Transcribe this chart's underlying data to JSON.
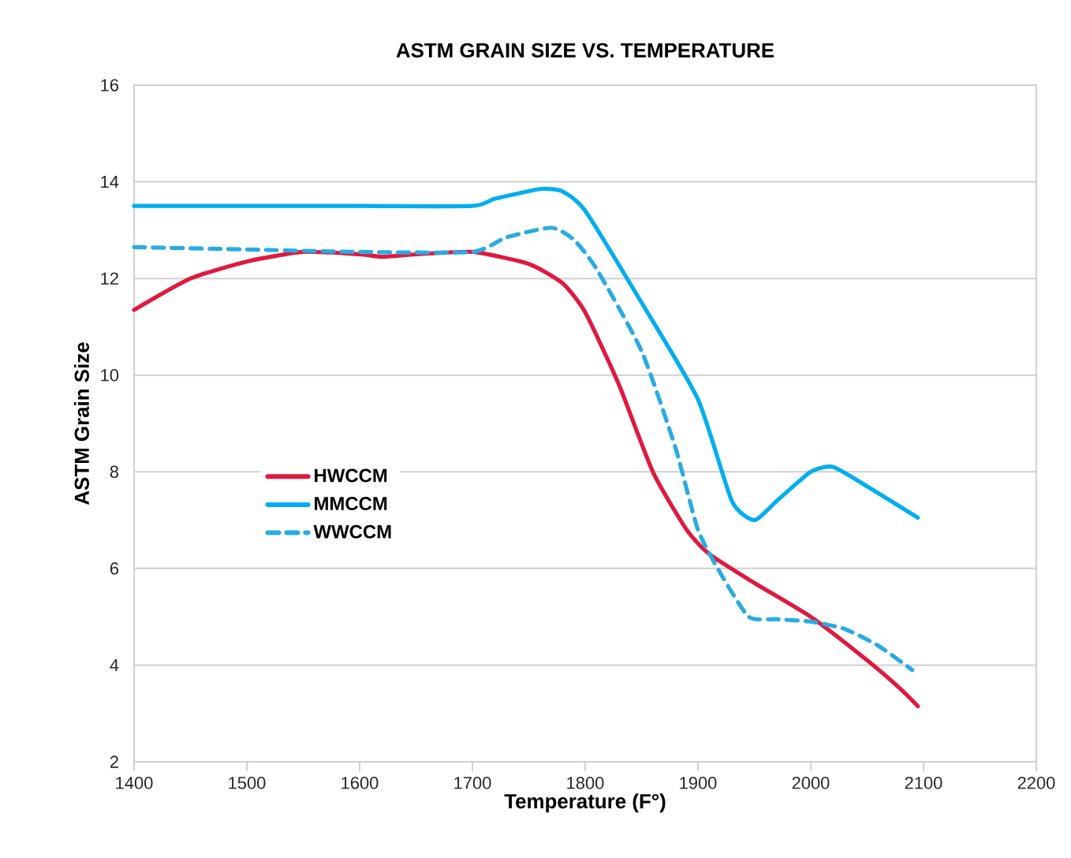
{
  "chart_data": {
    "type": "line",
    "title": "ASTM GRAIN SIZE VS. TEMPERATURE",
    "xlabel": "Temperature (F°)",
    "ylabel": "ASTM Grain Size",
    "xlim": [
      1400,
      2200
    ],
    "xticks": [
      1400,
      1500,
      1600,
      1700,
      1800,
      1900,
      2000,
      2100,
      2200
    ],
    "ylim": [
      2,
      16
    ],
    "yticks": [
      2,
      4,
      6,
      8,
      10,
      12,
      14,
      16
    ],
    "grid": "y",
    "legend": "center left",
    "marker": "none",
    "series": [
      {
        "name": "HWCCM",
        "color": "#e0193f",
        "line_style": "solid",
        "x": [
          1400,
          1450,
          1500,
          1550,
          1600,
          1620,
          1650,
          1700,
          1750,
          1780,
          1800,
          1830,
          1860,
          1890,
          1910,
          1950,
          2000,
          2050,
          2080,
          2095
        ],
        "values": [
          11.35,
          12.0,
          12.35,
          12.55,
          12.5,
          12.45,
          12.5,
          12.55,
          12.3,
          11.9,
          11.3,
          9.8,
          8.0,
          6.8,
          6.3,
          5.7,
          5.0,
          4.1,
          3.5,
          3.15
        ]
      },
      {
        "name": "MMCCM",
        "color": "#00aeef",
        "line_style": "solid",
        "x": [
          1400,
          1500,
          1600,
          1700,
          1720,
          1760,
          1780,
          1800,
          1850,
          1900,
          1930,
          1950,
          1970,
          2000,
          2020,
          2050,
          2095
        ],
        "values": [
          13.5,
          13.5,
          13.5,
          13.5,
          13.65,
          13.85,
          13.8,
          13.4,
          11.5,
          9.5,
          7.4,
          7.0,
          7.4,
          8.0,
          8.1,
          7.7,
          7.05
        ]
      },
      {
        "name": "WWCCM",
        "color": "#29abe2",
        "line_style": "dashed",
        "x": [
          1400,
          1500,
          1600,
          1700,
          1730,
          1770,
          1790,
          1810,
          1850,
          1880,
          1900,
          1920,
          1945,
          1970,
          2000,
          2030,
          2060,
          2090
        ],
        "values": [
          12.65,
          12.6,
          12.55,
          12.55,
          12.85,
          13.05,
          12.8,
          12.2,
          10.5,
          8.5,
          6.8,
          5.9,
          5.0,
          4.95,
          4.9,
          4.75,
          4.4,
          3.9
        ]
      }
    ]
  }
}
